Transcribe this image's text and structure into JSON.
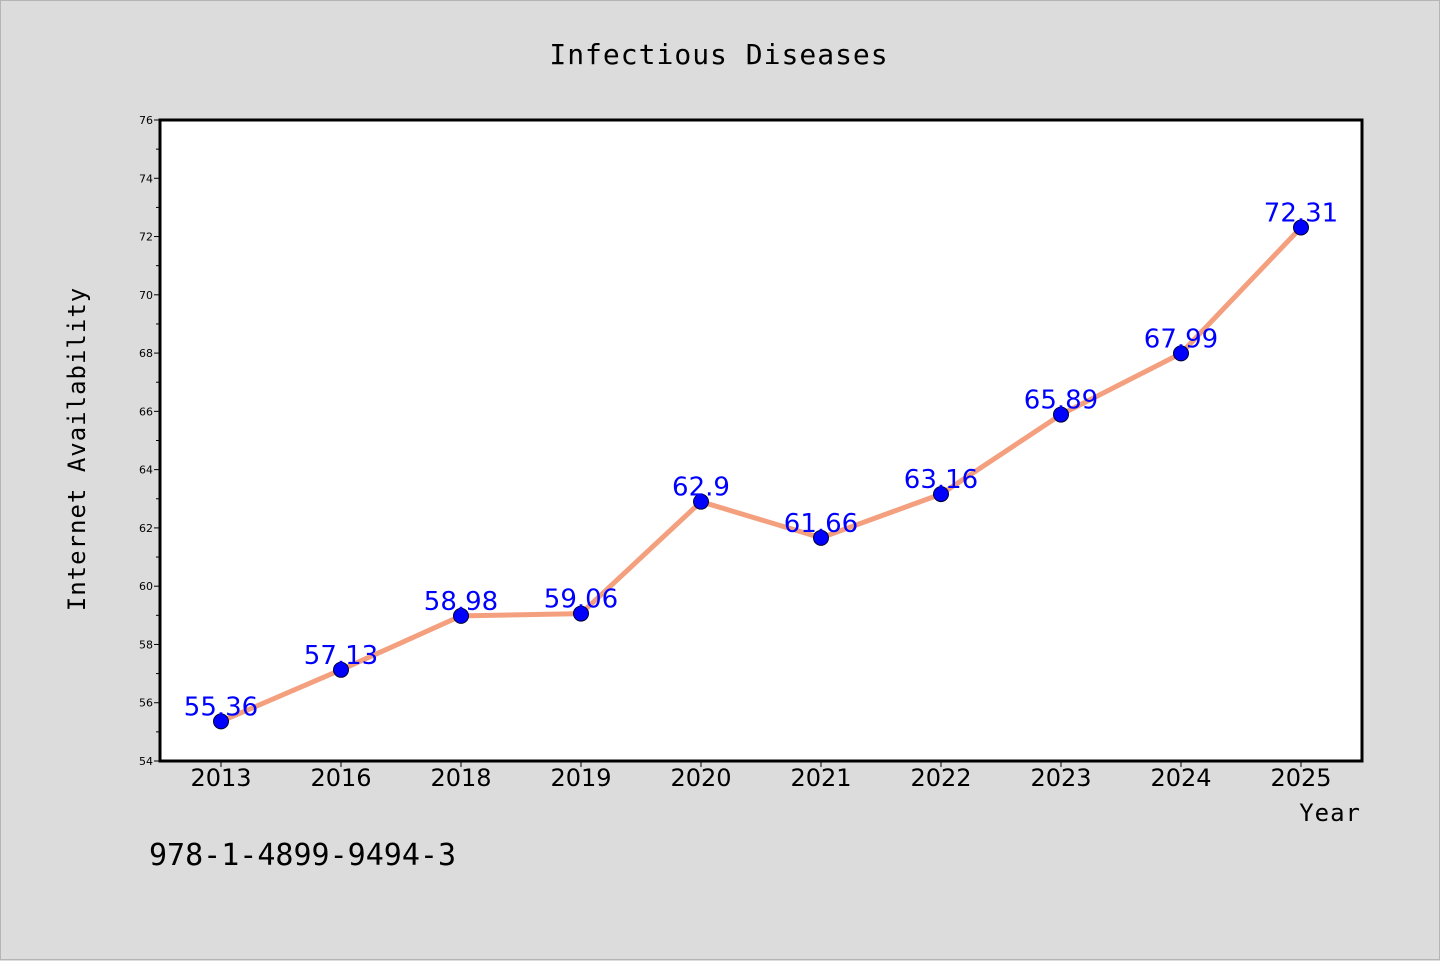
{
  "chart_data": {
    "type": "line",
    "title": "Infectious Diseases",
    "xlabel": "Year",
    "ylabel": "Internet Availability",
    "categories": [
      "2013",
      "2016",
      "2018",
      "2019",
      "2020",
      "2021",
      "2022",
      "2023",
      "2024",
      "2025"
    ],
    "values": [
      55.36,
      57.13,
      58.98,
      59.06,
      62.9,
      61.66,
      63.16,
      65.89,
      67.99,
      72.31
    ],
    "data_labels": [
      "55.36",
      "57.13",
      "58.98",
      "59.06",
      "62.9",
      "61.66",
      "63.16",
      "65.89",
      "67.99",
      "72.31"
    ],
    "ylim": [
      54,
      76
    ],
    "yticks": [
      54,
      56,
      58,
      60,
      62,
      64,
      66,
      68,
      70,
      72,
      74,
      76
    ],
    "grid": false,
    "line_color": "#f4a07f",
    "marker_color": "#0000ff",
    "label_color": "#0000ff"
  },
  "footer": {
    "isbn": "978-1-4899-9494-3"
  }
}
